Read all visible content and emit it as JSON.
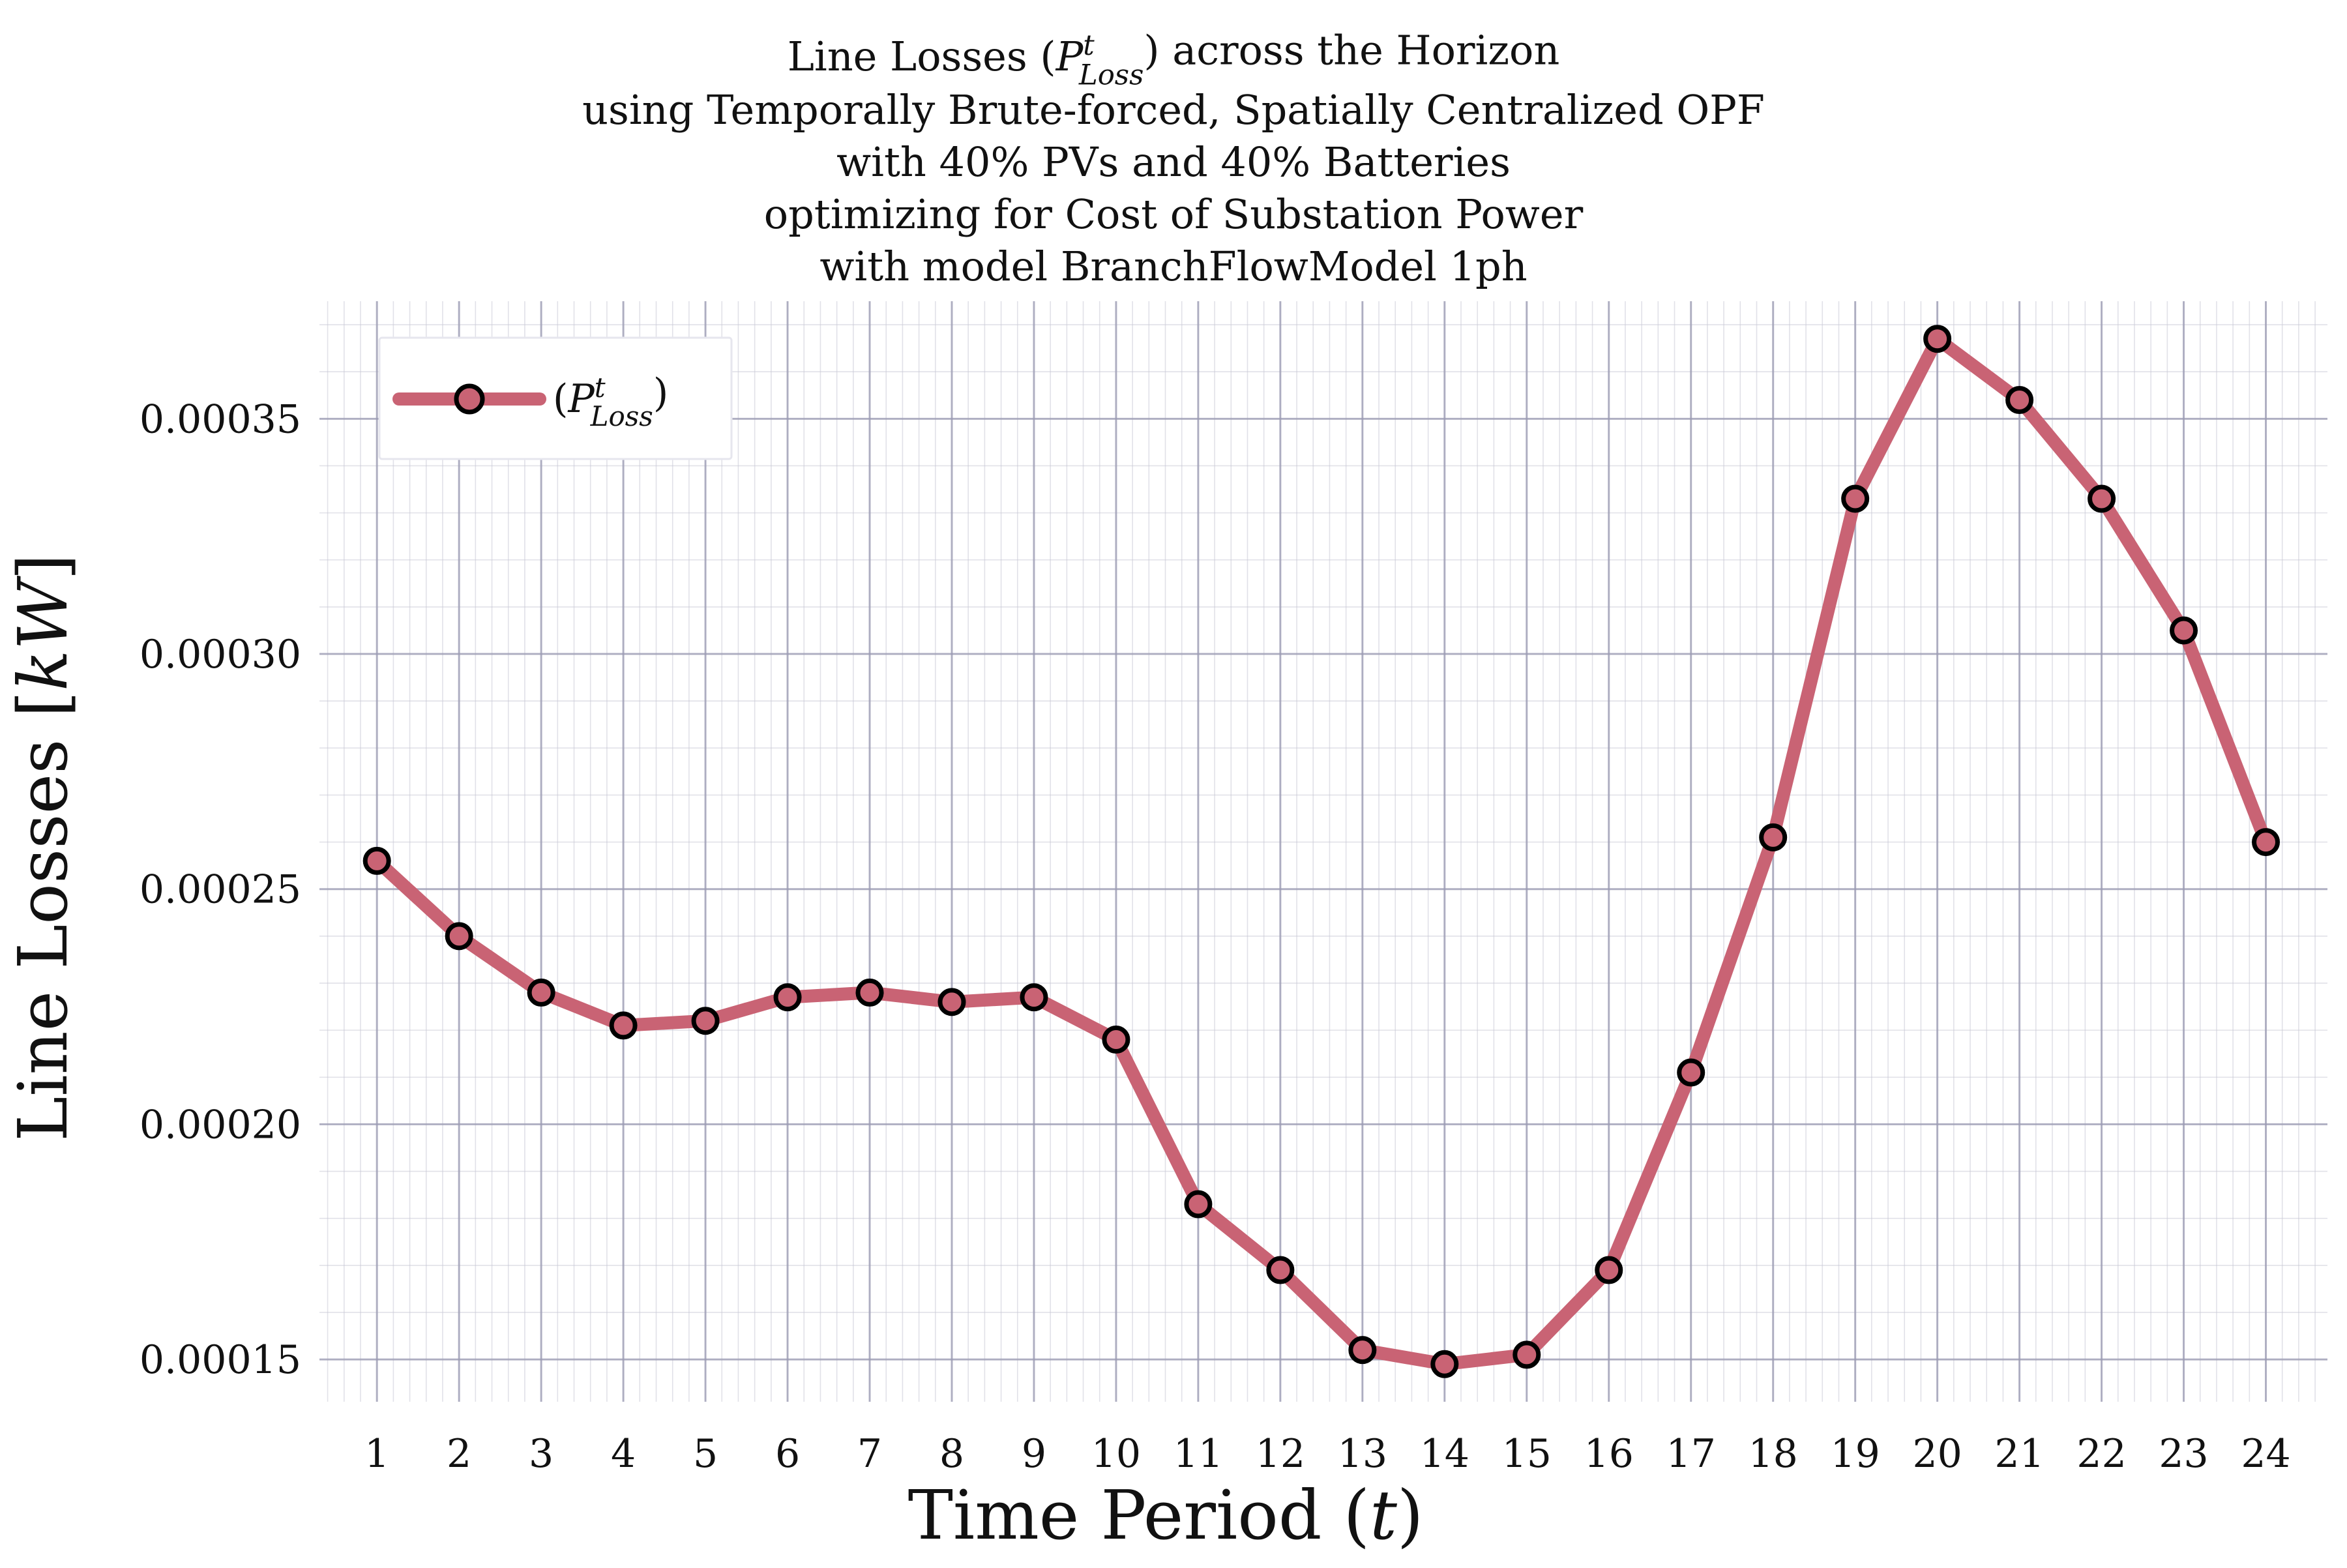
{
  "chart_data": {
    "type": "line",
    "title_lines": [
      "Line Losses (P^t_Loss) across the Horizon",
      "using Temporally Brute-forced, Spatially Centralized OPF",
      "with 40% PVs and 40% Batteries",
      "optimizing for Cost of Substation Power",
      "with model BranchFlowModel 1ph"
    ],
    "xlabel": "Time Period (t)",
    "ylabel": "Line Losses [kW]",
    "x": [
      1,
      2,
      3,
      4,
      5,
      6,
      7,
      8,
      9,
      10,
      11,
      12,
      13,
      14,
      15,
      16,
      17,
      18,
      19,
      20,
      21,
      22,
      23,
      24
    ],
    "x_tick_labels": [
      "1",
      "2",
      "3",
      "4",
      "5",
      "6",
      "7",
      "8",
      "9",
      "10",
      "11",
      "12",
      "13",
      "14",
      "15",
      "16",
      "17",
      "18",
      "19",
      "20",
      "21",
      "22",
      "23",
      "24"
    ],
    "y_ticks": [
      0.00015,
      0.0002,
      0.00025,
      0.0003,
      0.00035
    ],
    "y_tick_labels": [
      "0.00015",
      "0.00020",
      "0.00025",
      "0.00030",
      "0.00035"
    ],
    "xlim": [
      0.3,
      24.75
    ],
    "ylim": [
      0.000141,
      0.000375
    ],
    "grid": true,
    "legend_position": "top-left",
    "series": [
      {
        "name": "(P^t_Loss)",
        "color": "#c96374",
        "marker_edge": "#000000",
        "values": [
          0.000256,
          0.00024,
          0.000228,
          0.000221,
          0.000222,
          0.000227,
          0.000228,
          0.000226,
          0.000227,
          0.000218,
          0.000183,
          0.000169,
          0.000152,
          0.000149,
          0.000151,
          0.000169,
          0.000211,
          0.000261,
          0.000333,
          0.000367,
          0.000354,
          0.000333,
          0.000305,
          0.00026
        ]
      }
    ]
  }
}
